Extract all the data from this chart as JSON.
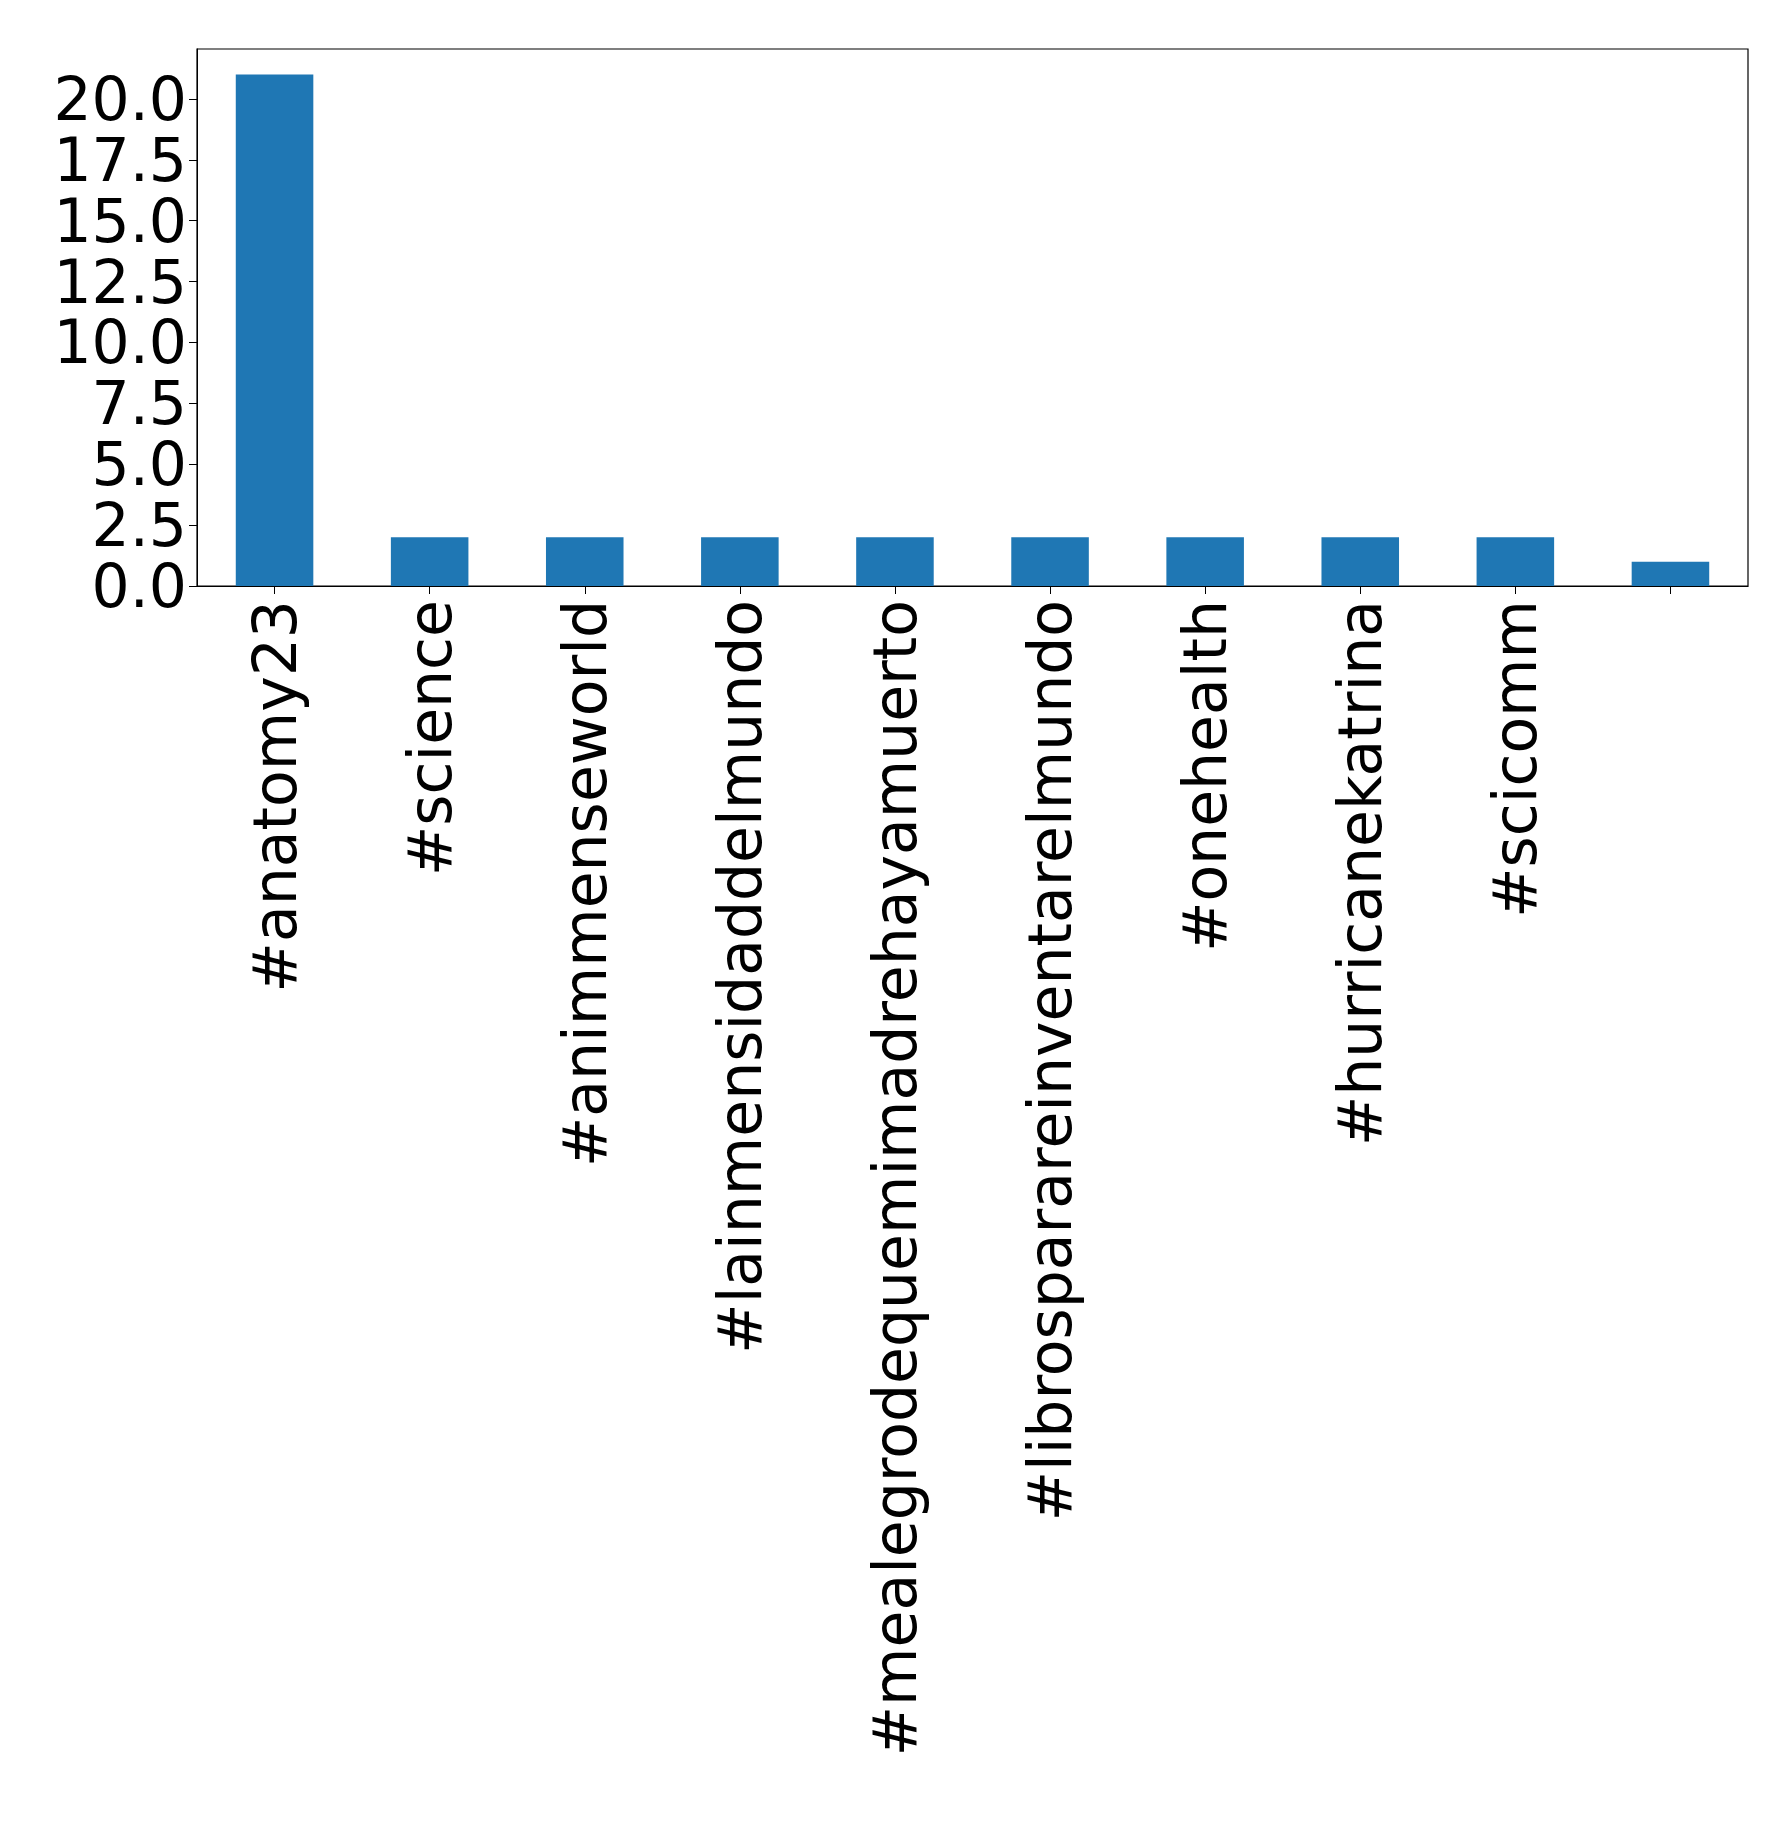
{
  "chart_data": {
    "type": "bar",
    "categories": [
      "#anatomy23",
      "#science",
      "#animmenseworld",
      "#lainmensidaddelmundo",
      "#mealegrodequemimadrehayamuerto",
      "#librosparareinventarelmundo",
      "#onehealth",
      "#hurricanekatrina",
      "#scicomm",
      null
    ],
    "values": [
      21,
      2,
      2,
      2,
      2,
      2,
      2,
      2,
      2,
      1
    ],
    "color": "#1f77b4",
    "ylim": [
      0,
      22.05
    ],
    "yticks": [
      {
        "value": 0,
        "label": "0.0"
      },
      {
        "value": 2.5,
        "label": "2.5"
      },
      {
        "value": 5,
        "label": "5.0"
      },
      {
        "value": 7.5,
        "label": "7.5"
      },
      {
        "value": 10,
        "label": "10.0"
      },
      {
        "value": 12.5,
        "label": "12.5"
      },
      {
        "value": 15,
        "label": "15.0"
      },
      {
        "value": 17.5,
        "label": "17.5"
      },
      {
        "value": 20,
        "label": "20.0"
      }
    ],
    "grid": false
  }
}
